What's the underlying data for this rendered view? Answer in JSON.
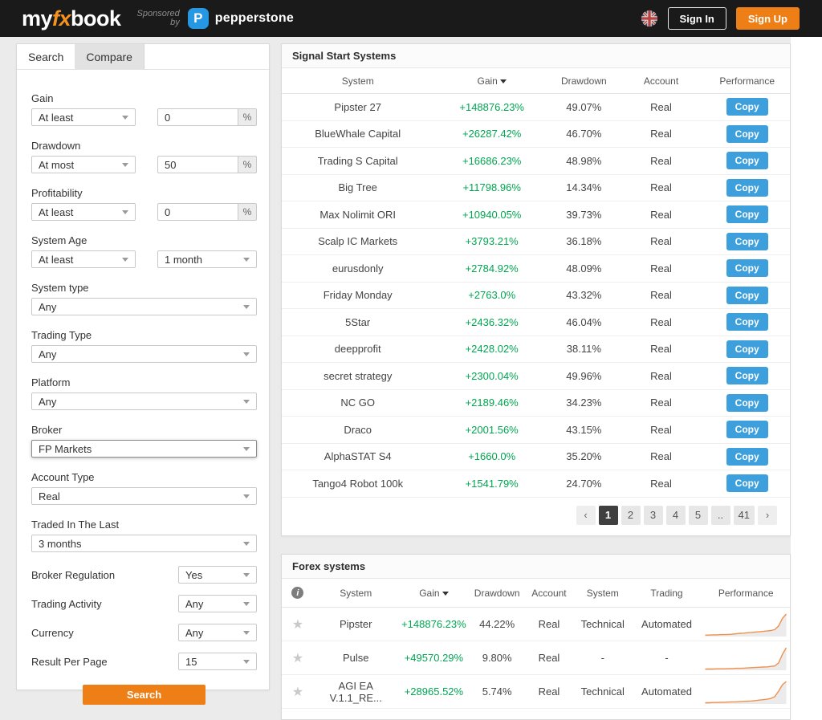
{
  "colors": {
    "accent_orange": "#ee7f17",
    "logo_fx_orange": "#f6921e",
    "copy_button_blue": "#3da0dc",
    "gain_green": "#00a651",
    "topbar_background": "#1a1a1a",
    "pepperstone_blue": "#2697e2",
    "page_background": "#ebebeb"
  },
  "icons": {
    "star": "★",
    "info": "i",
    "prev": "‹",
    "next": "›"
  },
  "header": {
    "logo_my": "my",
    "logo_fx": "fx",
    "logo_book": "book",
    "sponsored_line1": "Sponsored",
    "sponsored_line2": "by",
    "pepperstone_glyph": "P",
    "pepperstone_label": "pepperstone",
    "sign_in_label": "Sign In",
    "sign_up_label": "Sign Up"
  },
  "sidebar": {
    "tab_search": "Search",
    "tab_compare": "Compare",
    "gain": {
      "label": "Gain",
      "operator": "At least",
      "value": "0",
      "suffix": "%"
    },
    "drawdown": {
      "label": "Drawdown",
      "operator": "At most",
      "value": "50",
      "suffix": "%"
    },
    "profitability": {
      "label": "Profitability",
      "operator": "At least",
      "value": "0",
      "suffix": "%"
    },
    "system_age": {
      "label": "System Age",
      "operator": "At least",
      "value": "1 month"
    },
    "system_type": {
      "label": "System type",
      "value": "Any"
    },
    "trading_type": {
      "label": "Trading Type",
      "value": "Any"
    },
    "platform": {
      "label": "Platform",
      "value": "Any"
    },
    "broker": {
      "label": "Broker",
      "value": "FP Markets"
    },
    "account_type": {
      "label": "Account Type",
      "value": "Real"
    },
    "traded_in_last": {
      "label": "Traded In The Last",
      "value": "3 months"
    },
    "broker_regulation": {
      "label": "Broker Regulation",
      "value": "Yes"
    },
    "trading_activity": {
      "label": "Trading Activity",
      "value": "Any"
    },
    "currency": {
      "label": "Currency",
      "value": "Any"
    },
    "result_per_page": {
      "label": "Result Per Page",
      "value": "15"
    },
    "search_button": "Search"
  },
  "signal_table": {
    "title": "Signal Start Systems",
    "columns": [
      "System",
      "Gain",
      "Drawdown",
      "Account",
      "Performance"
    ],
    "copy_label": "Copy",
    "rows": [
      {
        "system": "Pipster 27",
        "gain": "+148876.23%",
        "drawdown": "49.07%",
        "account": "Real"
      },
      {
        "system": "BlueWhale Capital",
        "gain": "+26287.42%",
        "drawdown": "46.70%",
        "account": "Real"
      },
      {
        "system": "Trading S Capital",
        "gain": "+16686.23%",
        "drawdown": "48.98%",
        "account": "Real"
      },
      {
        "system": "Big Tree",
        "gain": "+11798.96%",
        "drawdown": "14.34%",
        "account": "Real"
      },
      {
        "system": "Max Nolimit ORI",
        "gain": "+10940.05%",
        "drawdown": "39.73%",
        "account": "Real"
      },
      {
        "system": "Scalp IC Markets",
        "gain": "+3793.21%",
        "drawdown": "36.18%",
        "account": "Real"
      },
      {
        "system": "eurusdonly",
        "gain": "+2784.92%",
        "drawdown": "48.09%",
        "account": "Real"
      },
      {
        "system": "Friday Monday",
        "gain": "+2763.0%",
        "drawdown": "43.32%",
        "account": "Real"
      },
      {
        "system": "5Star",
        "gain": "+2436.32%",
        "drawdown": "46.04%",
        "account": "Real"
      },
      {
        "system": "deepprofit",
        "gain": "+2428.02%",
        "drawdown": "38.11%",
        "account": "Real"
      },
      {
        "system": "secret strategy",
        "gain": "+2300.04%",
        "drawdown": "49.96%",
        "account": "Real"
      },
      {
        "system": "NC GO",
        "gain": "+2189.46%",
        "drawdown": "34.23%",
        "account": "Real"
      },
      {
        "system": "Draco",
        "gain": "+2001.56%",
        "drawdown": "43.15%",
        "account": "Real"
      },
      {
        "system": "AlphaSTAT S4",
        "gain": "+1660.0%",
        "drawdown": "35.20%",
        "account": "Real"
      },
      {
        "system": "Tango4 Robot 100k",
        "gain": "+1541.79%",
        "drawdown": "24.70%",
        "account": "Real"
      }
    ],
    "pagination": {
      "prev": "‹",
      "pages": [
        "1",
        "2",
        "3",
        "4",
        "5",
        "..",
        "41"
      ],
      "active_page": "1",
      "next": "›"
    }
  },
  "forex_table": {
    "title": "Forex systems",
    "columns": [
      "System",
      "Gain",
      "Drawdown",
      "Account",
      "System",
      "Trading",
      "Performance"
    ],
    "rows": [
      {
        "system": "Pipster",
        "gain": "+148876.23%",
        "drawdown": "44.22%",
        "account": "Real",
        "system_type": "Technical",
        "trading": "Automated",
        "spark": [
          0.03,
          0.03,
          0.04,
          0.04,
          0.05,
          0.05,
          0.06,
          0.07,
          0.09,
          0.11,
          0.12,
          0.14,
          0.15,
          0.17,
          0.18,
          0.2,
          0.22,
          0.24,
          0.28,
          0.45,
          0.8,
          1.0
        ]
      },
      {
        "system": "Pulse",
        "gain": "+49570.29%",
        "drawdown": "9.80%",
        "account": "Real",
        "system_type": "-",
        "trading": "-",
        "spark": [
          0.02,
          0.02,
          0.02,
          0.03,
          0.03,
          0.03,
          0.04,
          0.04,
          0.05,
          0.05,
          0.06,
          0.07,
          0.08,
          0.09,
          0.1,
          0.11,
          0.12,
          0.14,
          0.16,
          0.3,
          0.7,
          1.0
        ]
      },
      {
        "system": "AGI EA V.1.1_RE...",
        "gain": "+28965.52%",
        "drawdown": "5.74%",
        "account": "Real",
        "system_type": "Technical",
        "trading": "Automated",
        "spark": [
          0.02,
          0.02,
          0.03,
          0.03,
          0.04,
          0.04,
          0.05,
          0.06,
          0.06,
          0.07,
          0.08,
          0.09,
          0.1,
          0.12,
          0.14,
          0.16,
          0.18,
          0.22,
          0.3,
          0.55,
          0.85,
          1.0
        ]
      }
    ]
  }
}
